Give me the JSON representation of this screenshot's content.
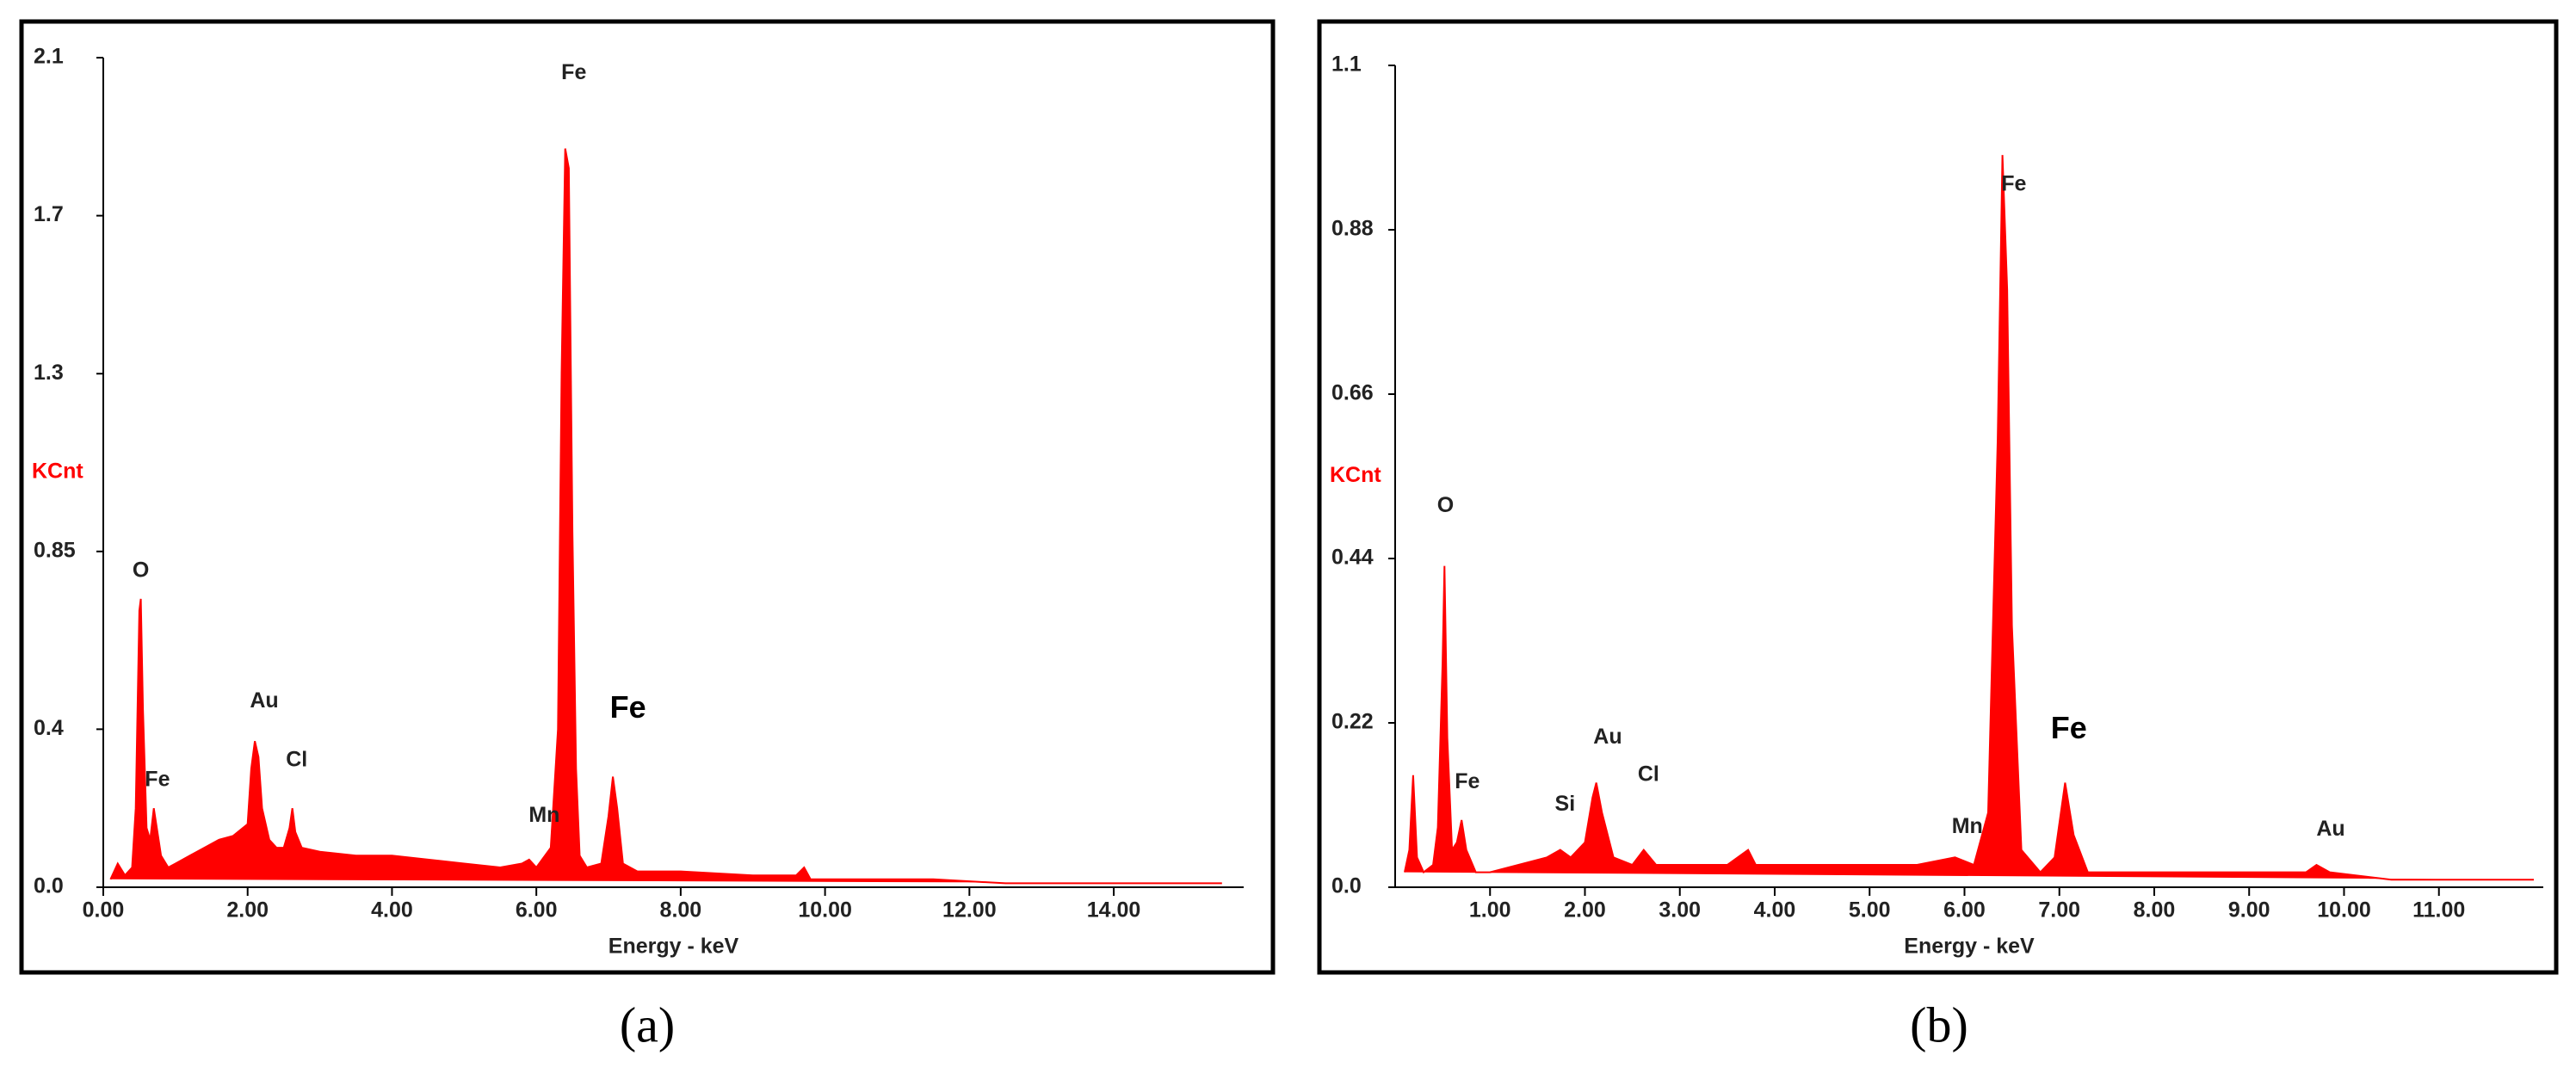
{
  "chart_data": [
    {
      "type": "area",
      "caption": "(a)",
      "y_label": "KCnt",
      "x_label": "Energy - keV",
      "color": "#ff0000",
      "xlim": [
        0,
        15.8
      ],
      "ylim": [
        0,
        2.1
      ],
      "xticks": [
        {
          "value": 0,
          "label": "0.00"
        },
        {
          "value": 2,
          "label": "2.00"
        },
        {
          "value": 4,
          "label": "4.00"
        },
        {
          "value": 6,
          "label": "6.00"
        },
        {
          "value": 8,
          "label": "8.00"
        },
        {
          "value": 10,
          "label": "10.00"
        },
        {
          "value": 12,
          "label": "12.00"
        },
        {
          "value": 14,
          "label": "14.00"
        }
      ],
      "yticks": [
        {
          "value": 0,
          "label": "0.0"
        },
        0.4,
        0.85,
        1.3,
        1.7,
        2.1
      ],
      "x": [
        0.1,
        0.2,
        0.3,
        0.4,
        0.45,
        0.5,
        0.52,
        0.55,
        0.6,
        0.65,
        0.7,
        0.75,
        0.8,
        0.9,
        1.0,
        1.2,
        1.4,
        1.6,
        1.8,
        2.0,
        2.05,
        2.1,
        2.15,
        2.2,
        2.3,
        2.4,
        2.5,
        2.58,
        2.62,
        2.66,
        2.75,
        3.0,
        3.5,
        4.0,
        4.5,
        5.0,
        5.5,
        5.8,
        5.9,
        6.0,
        6.2,
        6.3,
        6.35,
        6.4,
        6.45,
        6.5,
        6.55,
        6.6,
        6.7,
        6.9,
        7.0,
        7.06,
        7.12,
        7.2,
        7.4,
        8.0,
        9.0,
        9.6,
        9.71,
        9.8,
        10.5,
        11.5,
        12.5,
        13.5,
        14.5,
        15.5
      ],
      "values": [
        0.02,
        0.06,
        0.03,
        0.05,
        0.2,
        0.7,
        0.73,
        0.45,
        0.15,
        0.12,
        0.2,
        0.14,
        0.08,
        0.05,
        0.06,
        0.08,
        0.1,
        0.12,
        0.13,
        0.16,
        0.3,
        0.37,
        0.33,
        0.2,
        0.12,
        0.1,
        0.1,
        0.15,
        0.2,
        0.14,
        0.1,
        0.09,
        0.08,
        0.08,
        0.07,
        0.06,
        0.05,
        0.06,
        0.07,
        0.05,
        0.1,
        0.4,
        1.3,
        1.87,
        1.82,
        0.9,
        0.3,
        0.08,
        0.05,
        0.06,
        0.18,
        0.28,
        0.2,
        0.06,
        0.04,
        0.04,
        0.03,
        0.03,
        0.05,
        0.02,
        0.02,
        0.02,
        0.01,
        0.01,
        0.01,
        0.01
      ],
      "annotations": [
        {
          "text": "O",
          "x": 0.52,
          "y": 0.8
        },
        {
          "text": "Fe",
          "x": 0.75,
          "y": 0.27
        },
        {
          "text": "Au",
          "x": 2.23,
          "y": 0.47
        },
        {
          "text": "Cl",
          "x": 2.68,
          "y": 0.32
        },
        {
          "text": "Mn",
          "x": 6.11,
          "y": 0.18
        },
        {
          "text": "Fe",
          "x": 6.52,
          "y": 2.06
        },
        {
          "text": "Fe",
          "x": 7.27,
          "y": 0.45,
          "bold": true
        }
      ]
    },
    {
      "type": "area",
      "caption": "(b)",
      "y_label": "KCnt",
      "x_label": "Energy - keV",
      "color": "#ff0000",
      "xlim": [
        0,
        12.1
      ],
      "ylim": [
        0,
        1.1
      ],
      "xticks": [
        {
          "value": 1,
          "label": "1.00"
        },
        {
          "value": 2,
          "label": "2.00"
        },
        {
          "value": 3,
          "label": "3.00"
        },
        {
          "value": 4,
          "label": "4.00"
        },
        {
          "value": 5,
          "label": "5.00"
        },
        {
          "value": 6,
          "label": "6.00"
        },
        {
          "value": 7,
          "label": "7.00"
        },
        {
          "value": 8,
          "label": "8.00"
        },
        {
          "value": 9,
          "label": "9.00"
        },
        {
          "value": 10,
          "label": "10.00"
        },
        {
          "value": 11,
          "label": "11.00"
        }
      ],
      "yticks": [
        {
          "value": 0,
          "label": "0.0"
        },
        0.22,
        0.44,
        0.66,
        0.88,
        1.1
      ],
      "x": [
        0.1,
        0.15,
        0.19,
        0.23,
        0.3,
        0.4,
        0.45,
        0.5,
        0.52,
        0.55,
        0.6,
        0.65,
        0.7,
        0.75,
        0.85,
        1.0,
        1.3,
        1.6,
        1.74,
        1.85,
        2.0,
        2.08,
        2.12,
        2.18,
        2.3,
        2.5,
        2.62,
        2.75,
        3.0,
        3.5,
        3.72,
        3.8,
        4.5,
        5.0,
        5.5,
        5.9,
        6.1,
        6.25,
        6.35,
        6.4,
        6.45,
        6.5,
        6.6,
        6.8,
        6.95,
        7.06,
        7.15,
        7.3,
        8.0,
        9.0,
        9.6,
        9.71,
        9.85,
        10.5,
        11.5,
        12.0
      ],
      "values": [
        0.02,
        0.05,
        0.15,
        0.04,
        0.02,
        0.03,
        0.08,
        0.3,
        0.43,
        0.2,
        0.05,
        0.06,
        0.09,
        0.05,
        0.02,
        0.02,
        0.03,
        0.04,
        0.05,
        0.04,
        0.06,
        0.12,
        0.14,
        0.1,
        0.04,
        0.03,
        0.05,
        0.03,
        0.03,
        0.03,
        0.05,
        0.03,
        0.03,
        0.03,
        0.03,
        0.04,
        0.03,
        0.1,
        0.6,
        0.98,
        0.8,
        0.35,
        0.05,
        0.02,
        0.04,
        0.14,
        0.07,
        0.02,
        0.02,
        0.02,
        0.02,
        0.03,
        0.02,
        0.01,
        0.01,
        0.01
      ],
      "annotations": [
        {
          "text": "O",
          "x": 0.53,
          "y": 0.51
        },
        {
          "text": "Fe",
          "x": 0.76,
          "y": 0.14
        },
        {
          "text": "Si",
          "x": 1.79,
          "y": 0.11
        },
        {
          "text": "Au",
          "x": 2.24,
          "y": 0.2
        },
        {
          "text": "Cl",
          "x": 2.67,
          "y": 0.15
        },
        {
          "text": "Mn",
          "x": 6.03,
          "y": 0.08
        },
        {
          "text": "Fe",
          "x": 6.52,
          "y": 0.94
        },
        {
          "text": "Fe",
          "x": 7.1,
          "y": 0.21,
          "bold": true
        },
        {
          "text": "Au",
          "x": 9.86,
          "y": 0.077
        }
      ]
    }
  ]
}
